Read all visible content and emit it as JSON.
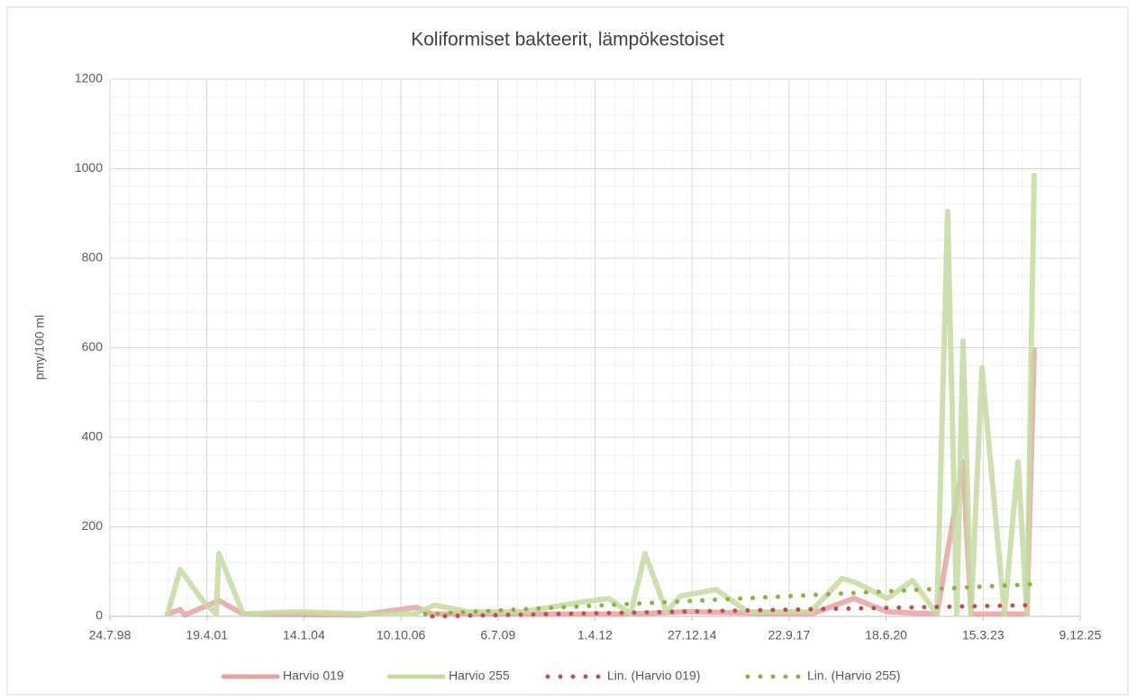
{
  "chart_data": {
    "type": "line",
    "title": "Koliformiset bakteerit, lämpökestoiset",
    "y_label": "pmy/100 ml",
    "xlim": [
      36000,
      46000
    ],
    "xticks": [
      {
        "value": 36000,
        "label": "24.7.98"
      },
      {
        "value": 37000,
        "label": "19.4.01"
      },
      {
        "value": 38000,
        "label": "14.1.04"
      },
      {
        "value": 39000,
        "label": "10.10.06"
      },
      {
        "value": 40000,
        "label": "6.7.09"
      },
      {
        "value": 41000,
        "label": "1.4.12"
      },
      {
        "value": 42000,
        "label": "27.12.14"
      },
      {
        "value": 43000,
        "label": "22.9.17"
      },
      {
        "value": 44000,
        "label": "18.6.20"
      },
      {
        "value": 45000,
        "label": "15.3.23"
      },
      {
        "value": 46000,
        "label": "9.12.25"
      }
    ],
    "ylim": [
      0,
      1200
    ],
    "yticks": [
      0,
      200,
      400,
      600,
      800,
      1000,
      1200
    ],
    "grid": true,
    "minor_grid": true,
    "legend": "bottom",
    "series": [
      {
        "name": "Harvio 019",
        "color": "#e6a3a3",
        "style": "solid",
        "x": [
          36594,
          36724,
          36771,
          37123,
          37374,
          38581,
          39157,
          39324,
          41367,
          41924,
          43224,
          43670,
          44013,
          44524,
          44793,
          44876,
          45452,
          45526
        ],
        "values": [
          5,
          15,
          3,
          35,
          5,
          3,
          20,
          5,
          5,
          10,
          5,
          40,
          10,
          5,
          345,
          5,
          5,
          595
        ]
      },
      {
        "name": "Harvio 255",
        "color": "#c6dba2",
        "style": "solid",
        "x": [
          36594,
          36724,
          36956,
          37096,
          37123,
          37374,
          37885,
          38256,
          38674,
          39138,
          39343,
          39696,
          40253,
          40810,
          41144,
          41367,
          41515,
          41738,
          41877,
          42249,
          42574,
          43224,
          43549,
          43688,
          44013,
          44273,
          44524,
          44635,
          44728,
          44793,
          44876,
          44988,
          45220,
          45359,
          45452,
          45526
        ],
        "values": [
          5,
          105,
          35,
          5,
          140,
          5,
          10,
          8,
          5,
          5,
          25,
          10,
          10,
          30,
          40,
          5,
          140,
          10,
          45,
          60,
          10,
          10,
          85,
          75,
          40,
          80,
          5,
          905,
          5,
          615,
          5,
          555,
          5,
          345,
          5,
          985
        ]
      },
      {
        "name": "Lin. (Harvio 019)",
        "color": "#c0504d",
        "style": "dotted",
        "x": [
          39324,
          45526
        ],
        "values": [
          0,
          25
        ]
      },
      {
        "name": "Lin. (Harvio 255)",
        "color": "#8db33e",
        "style": "dotted",
        "x": [
          39250,
          45526
        ],
        "values": [
          5,
          72
        ]
      }
    ]
  }
}
